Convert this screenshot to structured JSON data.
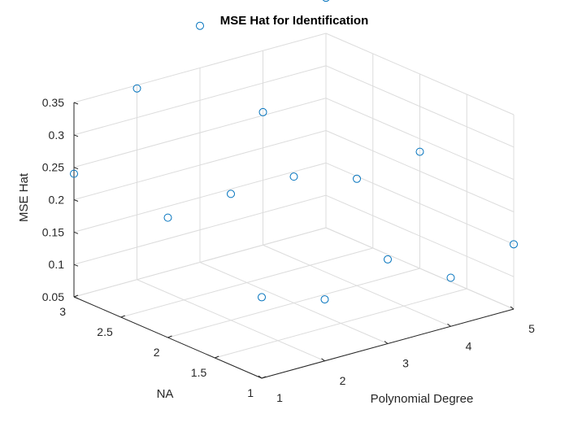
{
  "chart_data": {
    "type": "scatter",
    "title": "MSE Hat for Identification",
    "xlabel": "Polynomial Degree",
    "ylabel": "NA",
    "zlabel": "MSE Hat",
    "xlim": [
      1,
      5
    ],
    "ylim": [
      1,
      3
    ],
    "zlim": [
      0.05,
      0.35
    ],
    "x_ticks": [
      1,
      2,
      3,
      4,
      5
    ],
    "y_ticks": [
      1,
      1.5,
      2,
      2.5,
      3
    ],
    "z_ticks": [
      0.05,
      0.1,
      0.15,
      0.2,
      0.25,
      0.3,
      0.35
    ],
    "x_tick_labels": [
      "1",
      "2",
      "3",
      "4",
      "5"
    ],
    "y_tick_labels": [
      "1",
      "1.5",
      "2",
      "2.5",
      "3"
    ],
    "z_tick_labels": [
      "0.05",
      "0.1",
      "0.15",
      "0.2",
      "0.25",
      "0.3",
      "0.35"
    ],
    "grid": true,
    "marker": "circle",
    "color": "#0072bd",
    "points": [
      {
        "x": 1,
        "y": 1,
        "z": 0.175
      },
      {
        "x": 1,
        "y": 2,
        "z": 0.235
      },
      {
        "x": 1,
        "y": 3,
        "z": 0.24
      },
      {
        "x": 2,
        "y": 1,
        "z": 0.145
      },
      {
        "x": 2,
        "y": 2,
        "z": 0.245
      },
      {
        "x": 2,
        "y": 3,
        "z": 0.345
      },
      {
        "x": 3,
        "y": 1,
        "z": 0.18
      },
      {
        "x": 3,
        "y": 2,
        "z": 0.245
      },
      {
        "x": 3,
        "y": 3,
        "z": 0.415
      },
      {
        "x": 4,
        "y": 1,
        "z": 0.125
      },
      {
        "x": 4,
        "y": 2,
        "z": 0.215
      },
      {
        "x": 4,
        "y": 3,
        "z": 0.255
      },
      {
        "x": 5,
        "y": 1,
        "z": 0.15
      },
      {
        "x": 5,
        "y": 2,
        "z": 0.23
      },
      {
        "x": 5,
        "y": 3,
        "z": 0.405
      }
    ]
  }
}
